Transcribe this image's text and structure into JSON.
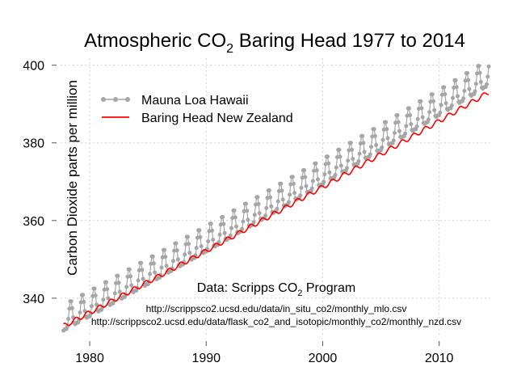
{
  "chart_data": {
    "type": "line",
    "title": {
      "prefix": "Atmospheric CO",
      "subscript": "2",
      "suffix": " Baring Head 1977 to 2014"
    },
    "xlabel": "",
    "ylabel": "Carbon Dioxide parts per million",
    "xlim": [
      1977.5,
      2014.6
    ],
    "ylim": [
      330.4,
      401.8
    ],
    "xticks": [
      1980,
      1990,
      2000,
      2010
    ],
    "xtick_labels": [
      "1980",
      "1990",
      "2000",
      "2010"
    ],
    "yticks": [
      340,
      360,
      380,
      400
    ],
    "ytick_labels": [
      "340",
      "360",
      "380",
      "400"
    ],
    "grid": true,
    "legend_position": "top-left",
    "series": [
      {
        "name": "Mauna Loa Hawaii",
        "color": "#a6a6a6",
        "style": "points-and-line",
        "x_start": 1977.75,
        "x_end": 2014.25,
        "step": "monthly",
        "trend_at_x_start": 334.0,
        "trend_at_x_end": 397.2,
        "seasonal_amplitude": 3.3
      },
      {
        "name": "Baring Head New Zealand",
        "color": "#ff0000",
        "style": "line",
        "x_start": 1977.75,
        "x_end": 2014.25,
        "step": "monthly",
        "trend_at_x_start": 332.8,
        "trend_at_x_end": 393.0,
        "seasonal_amplitude": 0.6
      }
    ],
    "annotations": {
      "source_prefix": "Data: Scripps CO",
      "source_subscript": "2",
      "source_suffix": " Program",
      "url_1": "http://scrippsco2.ucsd.edu/data/in_situ_co2/monthly_mlo.csv",
      "url_2": "http://scrippsco2.ucsd.edu/data/flask_co2_and_isotopic/monthly_co2/monthly_nzd.csv"
    }
  }
}
